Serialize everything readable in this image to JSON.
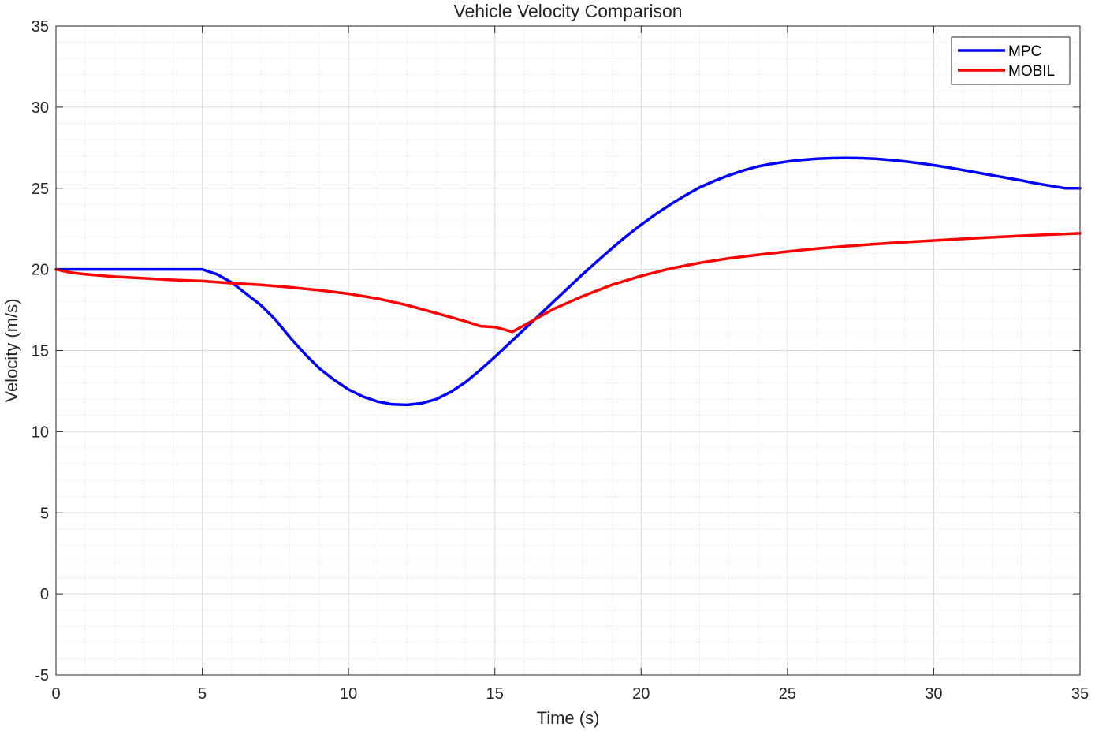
{
  "chart_data": {
    "type": "line",
    "title": "Vehicle Velocity Comparison",
    "xlabel": "Time (s)",
    "ylabel": "Velocity (m/s)",
    "xlim": [
      0,
      35
    ],
    "ylim": [
      -5,
      35
    ],
    "xticks": [
      "0",
      "5",
      "10",
      "15",
      "20",
      "25",
      "30",
      "35"
    ],
    "yticks": [
      "-5",
      "0",
      "5",
      "10",
      "15",
      "20",
      "25",
      "30",
      "35"
    ],
    "grid": true,
    "minor_grid": true,
    "legend_position": "top-right",
    "series": [
      {
        "name": "MPC",
        "color": "#0000ff",
        "x": [
          0,
          5,
          5.5,
          6,
          6.5,
          7,
          7.5,
          8,
          8.5,
          9,
          9.5,
          10,
          10.5,
          11,
          11.5,
          12,
          12.5,
          13,
          13.5,
          14,
          14.5,
          15,
          15.5,
          16,
          16.5,
          17,
          17.5,
          18,
          18.5,
          19,
          19.5,
          20,
          20.5,
          21,
          21.5,
          22,
          22.5,
          23,
          23.5,
          24,
          24.5,
          25,
          25.5,
          26,
          26.5,
          27,
          27.5,
          28,
          28.5,
          29,
          29.5,
          30,
          30.5,
          31,
          31.5,
          32,
          32.5,
          33,
          33.5,
          34,
          34.5,
          35
        ],
        "values": [
          20.0,
          20.0,
          19.7,
          19.2,
          18.5,
          17.8,
          16.9,
          15.8,
          14.8,
          13.9,
          13.2,
          12.6,
          12.15,
          11.85,
          11.68,
          11.65,
          11.75,
          12.0,
          12.45,
          13.05,
          13.8,
          14.6,
          15.45,
          16.3,
          17.15,
          18.0,
          18.85,
          19.7,
          20.5,
          21.3,
          22.05,
          22.75,
          23.4,
          24.0,
          24.55,
          25.05,
          25.45,
          25.8,
          26.1,
          26.35,
          26.52,
          26.65,
          26.75,
          26.82,
          26.86,
          26.87,
          26.86,
          26.82,
          26.75,
          26.66,
          26.55,
          26.42,
          26.28,
          26.12,
          25.96,
          25.8,
          25.64,
          25.48,
          25.3,
          25.15,
          25.0,
          25.0
        ]
      },
      {
        "name": "MOBIL",
        "color": "#ff0000",
        "x": [
          0,
          0.5,
          1,
          2,
          3,
          4,
          5,
          6,
          7,
          8,
          9,
          10,
          11,
          12,
          13,
          14,
          14.5,
          15,
          15.6,
          16,
          16.5,
          17,
          17.5,
          18,
          19,
          20,
          21,
          22,
          23,
          24,
          25,
          26,
          27,
          28,
          29,
          30,
          31,
          32,
          33,
          34,
          35
        ],
        "values": [
          20.0,
          19.8,
          19.7,
          19.55,
          19.45,
          19.35,
          19.28,
          19.15,
          19.05,
          18.9,
          18.72,
          18.5,
          18.2,
          17.8,
          17.3,
          16.8,
          16.5,
          16.45,
          16.15,
          16.55,
          17.05,
          17.55,
          17.95,
          18.35,
          19.05,
          19.6,
          20.05,
          20.4,
          20.68,
          20.9,
          21.1,
          21.28,
          21.43,
          21.56,
          21.68,
          21.78,
          21.88,
          21.98,
          22.07,
          22.15,
          22.22
        ]
      }
    ]
  }
}
